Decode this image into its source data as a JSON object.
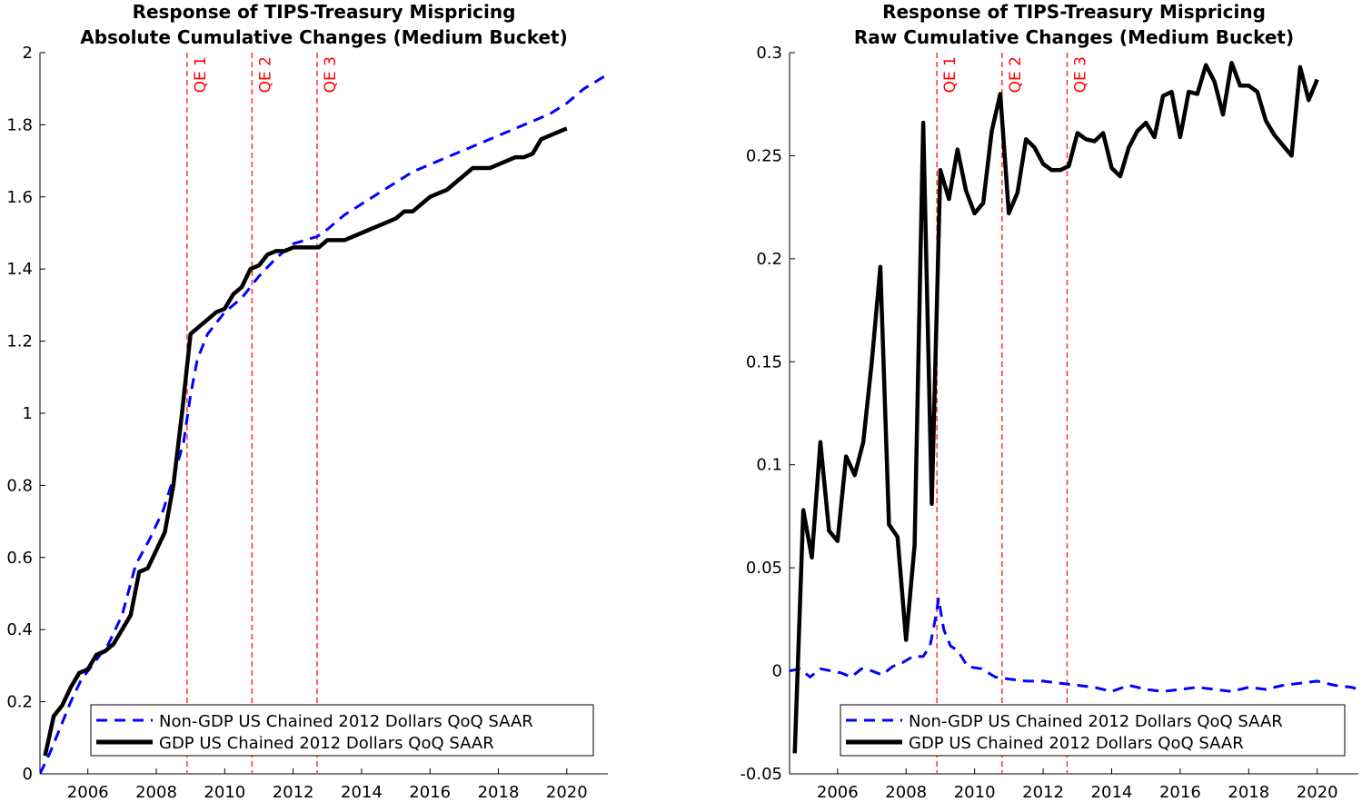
{
  "chart_data": [
    {
      "type": "line",
      "title": [
        "Response of TIPS-Treasury Mispricing",
        "Absolute Cumulative Changes (Medium Bucket)"
      ],
      "xlabel": "",
      "ylabel": "",
      "xlim": [
        2004.6,
        2021.2
      ],
      "ylim": [
        0,
        2
      ],
      "xticks": [
        "2006",
        "2008",
        "2010",
        "2012",
        "2014",
        "2016",
        "2018",
        "2020"
      ],
      "yticks": [
        "0",
        "0.2",
        "0.4",
        "0.6",
        "0.8",
        "1",
        "1.2",
        "1.4",
        "1.6",
        "1.8",
        "2"
      ],
      "grid": false,
      "legend_position": "bottom-right",
      "event_lines": [
        {
          "label": "QE 1",
          "x": 2008.9
        },
        {
          "label": "QE 2",
          "x": 2010.8
        },
        {
          "label": "QE 3",
          "x": 2012.7
        }
      ],
      "series": [
        {
          "name": "Non-GDP US Chained 2012 Dollars QoQ SAAR",
          "style": "dashed",
          "color": "#0000ff",
          "x": [
            2004.6,
            2004.9,
            2005.2,
            2005.5,
            2005.8,
            2006.2,
            2006.6,
            2007.0,
            2007.4,
            2007.8,
            2008.2,
            2008.5,
            2008.8,
            2009.0,
            2009.2,
            2009.5,
            2010.0,
            2010.5,
            2011.0,
            2011.5,
            2012.0,
            2012.7,
            2013.0,
            2013.5,
            2014.0,
            2014.5,
            2015.0,
            2015.5,
            2016.0,
            2016.5,
            2017.0,
            2017.5,
            2018.0,
            2018.5,
            2019.0,
            2019.5,
            2020.0,
            2020.5,
            2021.2
          ],
          "values": [
            0.0,
            0.06,
            0.13,
            0.2,
            0.26,
            0.31,
            0.36,
            0.44,
            0.58,
            0.65,
            0.73,
            0.82,
            0.92,
            1.05,
            1.15,
            1.22,
            1.28,
            1.32,
            1.38,
            1.43,
            1.47,
            1.49,
            1.51,
            1.55,
            1.58,
            1.61,
            1.64,
            1.67,
            1.69,
            1.71,
            1.73,
            1.75,
            1.77,
            1.79,
            1.81,
            1.83,
            1.86,
            1.9,
            1.94
          ]
        },
        {
          "name": "GDP US Chained 2012 Dollars QoQ SAAR",
          "style": "solid",
          "color": "#000000",
          "x": [
            2004.75,
            2005.0,
            2005.25,
            2005.5,
            2005.75,
            2006.0,
            2006.25,
            2006.5,
            2006.75,
            2007.0,
            2007.25,
            2007.5,
            2007.75,
            2008.0,
            2008.25,
            2008.5,
            2008.75,
            2009.0,
            2009.25,
            2009.5,
            2009.75,
            2010.0,
            2010.25,
            2010.5,
            2010.75,
            2011.0,
            2011.25,
            2011.5,
            2011.75,
            2012.0,
            2012.25,
            2012.5,
            2012.75,
            2013.0,
            2013.25,
            2013.5,
            2013.75,
            2014.0,
            2014.25,
            2014.5,
            2014.75,
            2015.0,
            2015.25,
            2015.5,
            2015.75,
            2016.0,
            2016.25,
            2016.5,
            2016.75,
            2017.0,
            2017.25,
            2017.5,
            2017.75,
            2018.0,
            2018.25,
            2018.5,
            2018.75,
            2019.0,
            2019.25,
            2019.5,
            2019.75,
            2020.0
          ],
          "values": [
            0.05,
            0.16,
            0.19,
            0.24,
            0.28,
            0.29,
            0.33,
            0.34,
            0.36,
            0.4,
            0.44,
            0.56,
            0.57,
            0.62,
            0.67,
            0.8,
            1.0,
            1.22,
            1.24,
            1.26,
            1.28,
            1.29,
            1.33,
            1.35,
            1.4,
            1.41,
            1.44,
            1.45,
            1.45,
            1.46,
            1.46,
            1.46,
            1.46,
            1.48,
            1.48,
            1.48,
            1.49,
            1.5,
            1.51,
            1.52,
            1.53,
            1.54,
            1.56,
            1.56,
            1.58,
            1.6,
            1.61,
            1.62,
            1.64,
            1.66,
            1.68,
            1.68,
            1.68,
            1.69,
            1.7,
            1.71,
            1.71,
            1.72,
            1.76,
            1.77,
            1.78,
            1.79
          ]
        }
      ]
    },
    {
      "type": "line",
      "title": [
        "Response of TIPS-Treasury Mispricing",
        "Raw Cumulative Changes (Medium Bucket)"
      ],
      "xlabel": "",
      "ylabel": "",
      "xlim": [
        2004.6,
        2021.2
      ],
      "ylim": [
        -0.05,
        0.3
      ],
      "xticks": [
        "2006",
        "2008",
        "2010",
        "2012",
        "2014",
        "2016",
        "2018",
        "2020"
      ],
      "yticks": [
        "-0.05",
        "0",
        "0.05",
        "0.1",
        "0.15",
        "0.2",
        "0.25",
        "0.3"
      ],
      "grid": false,
      "legend_position": "bottom-right",
      "event_lines": [
        {
          "label": "QE 1",
          "x": 2008.9
        },
        {
          "label": "QE 2",
          "x": 2010.8
        },
        {
          "label": "QE 3",
          "x": 2012.7
        }
      ],
      "series": [
        {
          "name": "Non-GDP US Chained 2012 Dollars QoQ SAAR",
          "style": "dashed",
          "color": "#0000ff",
          "x": [
            2004.6,
            2004.9,
            2005.2,
            2005.5,
            2005.8,
            2006.1,
            2006.4,
            2006.7,
            2007.0,
            2007.3,
            2007.6,
            2007.9,
            2008.2,
            2008.5,
            2008.7,
            2008.85,
            2008.95,
            2009.1,
            2009.3,
            2009.5,
            2009.8,
            2010.2,
            2010.6,
            2011.0,
            2011.5,
            2012.0,
            2012.5,
            2013.0,
            2013.5,
            2014.0,
            2014.5,
            2015.0,
            2015.5,
            2016.0,
            2016.5,
            2017.0,
            2017.5,
            2018.0,
            2018.5,
            2019.0,
            2019.5,
            2020.0,
            2020.5,
            2021.0,
            2021.2
          ],
          "values": [
            0.0,
            0.001,
            -0.003,
            0.001,
            0.0,
            -0.001,
            -0.003,
            0.001,
            0.0,
            -0.002,
            0.002,
            0.004,
            0.007,
            0.007,
            0.012,
            0.025,
            0.035,
            0.02,
            0.012,
            0.01,
            0.002,
            0.001,
            -0.003,
            -0.004,
            -0.005,
            -0.005,
            -0.006,
            -0.007,
            -0.008,
            -0.01,
            -0.007,
            -0.009,
            -0.01,
            -0.009,
            -0.008,
            -0.009,
            -0.01,
            -0.008,
            -0.009,
            -0.007,
            -0.006,
            -0.005,
            -0.007,
            -0.008,
            -0.009
          ]
        },
        {
          "name": "GDP US Chained 2012 Dollars QoQ SAAR",
          "style": "solid",
          "color": "#000000",
          "x": [
            2004.75,
            2005.0,
            2005.25,
            2005.5,
            2005.75,
            2006.0,
            2006.25,
            2006.5,
            2006.75,
            2007.0,
            2007.25,
            2007.5,
            2007.75,
            2008.0,
            2008.25,
            2008.5,
            2008.75,
            2009.0,
            2009.25,
            2009.5,
            2009.75,
            2010.0,
            2010.25,
            2010.5,
            2010.75,
            2011.0,
            2011.25,
            2011.5,
            2011.75,
            2012.0,
            2012.25,
            2012.5,
            2012.75,
            2013.0,
            2013.25,
            2013.5,
            2013.75,
            2014.0,
            2014.25,
            2014.5,
            2014.75,
            2015.0,
            2015.25,
            2015.5,
            2015.75,
            2016.0,
            2016.25,
            2016.5,
            2016.75,
            2017.0,
            2017.25,
            2017.5,
            2017.75,
            2018.0,
            2018.25,
            2018.5,
            2018.75,
            2019.0,
            2019.25,
            2019.5,
            2019.75,
            2020.0
          ],
          "values": [
            -0.04,
            0.078,
            0.055,
            0.111,
            0.068,
            0.063,
            0.104,
            0.095,
            0.111,
            0.15,
            0.196,
            0.071,
            0.065,
            0.015,
            0.061,
            0.266,
            0.081,
            0.243,
            0.229,
            0.253,
            0.233,
            0.222,
            0.227,
            0.262,
            0.28,
            0.222,
            0.232,
            0.258,
            0.254,
            0.246,
            0.243,
            0.243,
            0.245,
            0.261,
            0.258,
            0.257,
            0.261,
            0.244,
            0.24,
            0.254,
            0.262,
            0.266,
            0.259,
            0.279,
            0.281,
            0.259,
            0.281,
            0.28,
            0.294,
            0.286,
            0.27,
            0.295,
            0.284,
            0.284,
            0.281,
            0.267,
            0.26,
            0.255,
            0.25,
            0.293,
            0.277,
            0.287
          ]
        }
      ]
    }
  ]
}
